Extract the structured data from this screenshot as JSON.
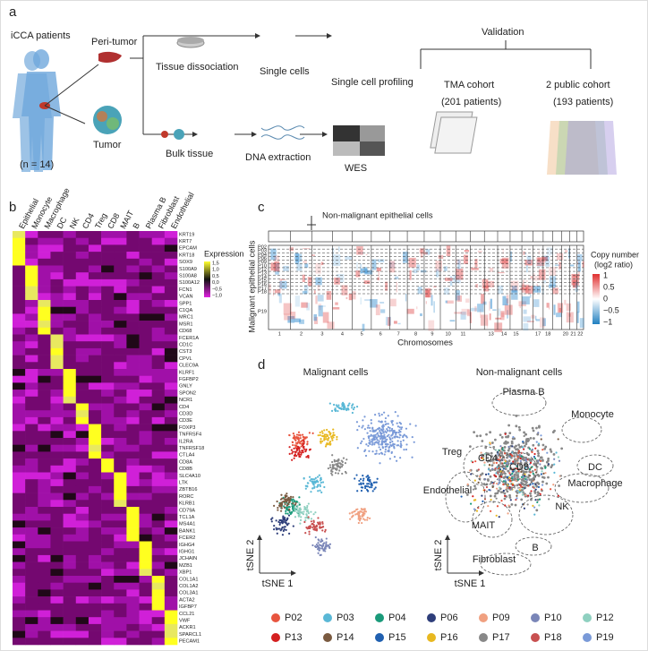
{
  "panels": [
    "a",
    "b",
    "c",
    "d"
  ],
  "workflow": {
    "patients": "iCCA patients",
    "peri_tumor": "Peri-tumor",
    "tumor": "Tumor",
    "n": "(n = 14)",
    "dissociation": "Tissue dissociation",
    "single_cells": "Single cells",
    "profiling": "Single cell profiling",
    "bulk": "Bulk tissue",
    "dna": "DNA extraction",
    "wes": "WES",
    "validation": "Validation",
    "tma": "TMA cohort",
    "tma_n": "(201 patients)",
    "public": "2 public cohort",
    "public_n": "(193 patients)"
  },
  "heatmap": {
    "colorbar_title": "Expression",
    "colorbar_labels": [
      "1,5",
      "1,0",
      "0,5",
      "0,0",
      "−0,5",
      "−1,0"
    ],
    "columns": [
      {
        "name": "Epithelial",
        "genes": [
          "KRT19",
          "KRT7",
          "EPCAM",
          "KRT18",
          "SOX9"
        ]
      },
      {
        "name": "Monocyte",
        "genes": [
          "S100A9",
          "S100A8",
          "S100A12",
          "FCN1",
          "VCAN"
        ]
      },
      {
        "name": "Macrophage",
        "genes": [
          "SPP1",
          "C1QA",
          "MRC1",
          "MSR1",
          "CD68"
        ]
      },
      {
        "name": "DC",
        "genes": [
          "FCER1A",
          "CD1C",
          "CST3",
          "CPVL",
          "CLEC9A"
        ]
      },
      {
        "name": "NK",
        "genes": [
          "KLRF1",
          "FGFBP2",
          "GNLY",
          "SPON2",
          "NCR1"
        ]
      },
      {
        "name": "CD4",
        "genes": [
          "CD4",
          "CD3D",
          "CD3E"
        ]
      },
      {
        "name": "Treg",
        "genes": [
          "FOXP3",
          "TNFRSF4",
          "IL2RA",
          "TNFRSF18",
          "CTLA4"
        ]
      },
      {
        "name": "CD8",
        "genes": [
          "CD8A",
          "CD8B"
        ]
      },
      {
        "name": "MAIT",
        "genes": [
          "SLC4A10",
          "LTK",
          "ZBTB16",
          "RORC",
          "KLRB1"
        ]
      },
      {
        "name": "B",
        "genes": [
          "CD79A",
          "TCL1A",
          "MS4A1",
          "BANK1",
          "FCER2"
        ]
      },
      {
        "name": "Plasma B",
        "genes": [
          "IGHG4",
          "IGHG1",
          "JCHAIN",
          "MZB1",
          "XBP1"
        ]
      },
      {
        "name": "Fibroblast",
        "genes": [
          "COL1A1",
          "COL1A2",
          "COL3A1",
          "ACTA2",
          "IGFBP7"
        ]
      },
      {
        "name": "Endothelial",
        "genes": [
          "CCL21",
          "VWF",
          "ACKR1",
          "SPARCL1",
          "PECAM1"
        ]
      }
    ]
  },
  "cnv": {
    "top_label": "Non-malignant epithelial cells",
    "y_label": "Malignant epithelial cells",
    "x_label": "Chromosomes",
    "colorbar_title": [
      "Copy number",
      "(log2 ratio)"
    ],
    "colorbar_labels": [
      "1",
      "0.5",
      "0",
      "−0.5",
      "−1"
    ],
    "patients": [
      "P02",
      "P03",
      "P04",
      "P06",
      "P09",
      "P10",
      "P12",
      "P13",
      "P14",
      "P15",
      "P16",
      "P17",
      "P18",
      "P19"
    ],
    "chromosomes": [
      "1",
      "2",
      "3",
      "4",
      "5",
      "6",
      "7",
      "8",
      "9",
      "10",
      "11",
      null,
      "13",
      "14",
      "15",
      null,
      "17",
      "18",
      null,
      "20",
      "21",
      "22"
    ]
  },
  "tsne": {
    "left_title": "Malignant cells",
    "right_title": "Non-malignant cells",
    "axes": [
      [
        "tSNE 2",
        "tSNE 1"
      ],
      [
        "tSNE 2",
        "tSNE 1"
      ]
    ],
    "cell_types": [
      "Plasma B",
      "Monocyte",
      "Treg",
      "DC",
      "Macrophage",
      "CD4",
      "CD8",
      "Endothelial",
      "NK",
      "MAIT",
      "B",
      "Fibroblast"
    ],
    "legend": [
      {
        "name": "P02",
        "color": "#e8553f"
      },
      {
        "name": "P03",
        "color": "#5ab8d6"
      },
      {
        "name": "P04",
        "color": "#1a9a7a"
      },
      {
        "name": "P06",
        "color": "#2e3e7a"
      },
      {
        "name": "P09",
        "color": "#f0a080"
      },
      {
        "name": "P10",
        "color": "#7a86b8"
      },
      {
        "name": "P12",
        "color": "#8fd0c0"
      },
      {
        "name": "P13",
        "color": "#d42020"
      },
      {
        "name": "P14",
        "color": "#7a5a40"
      },
      {
        "name": "P15",
        "color": "#2060b0"
      },
      {
        "name": "P16",
        "color": "#e8b820"
      },
      {
        "name": "P17",
        "color": "#888888"
      },
      {
        "name": "P18",
        "color": "#c85050"
      },
      {
        "name": "P19",
        "color": "#7a9ad8"
      }
    ]
  }
}
